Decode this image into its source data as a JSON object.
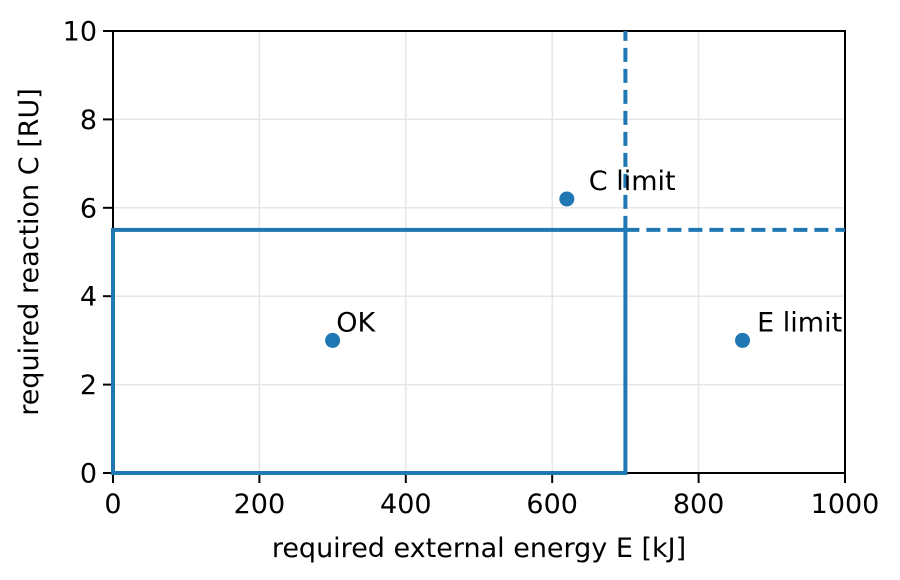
{
  "chart_data": {
    "type": "scatter",
    "title": "",
    "xlabel": "required external energy E [kJ]",
    "ylabel": "required reaction C [RU]",
    "xlim": [
      0,
      1000
    ],
    "ylim": [
      0,
      10
    ],
    "xticks": [
      0,
      200,
      400,
      600,
      800,
      1000
    ],
    "yticks": [
      0,
      2,
      4,
      6,
      8,
      10
    ],
    "grid": true,
    "legend": "none",
    "points": [
      {
        "label": "OK",
        "x": 300,
        "y": 3.0,
        "label_x": 305,
        "label_y": 3.2
      },
      {
        "label": "C limit",
        "x": 620,
        "y": 6.2,
        "label_x": 650,
        "label_y": 6.4
      },
      {
        "label": "E limit",
        "x": 860,
        "y": 3.0,
        "label_x": 880,
        "label_y": 3.2
      }
    ],
    "limits": {
      "E_limit": 700,
      "C_limit": 5.5,
      "solid_region": {
        "x0": 0,
        "y0": 0,
        "x1": 700,
        "y1": 5.5
      },
      "dashed_vertical": {
        "x": 700,
        "y0": 5.5,
        "y1": 10
      },
      "dashed_horizontal": {
        "y": 5.5,
        "x0": 700,
        "x1": 1000
      }
    },
    "colors": {
      "accent": "#1f77b4",
      "grid": "#e6e6e6",
      "axis": "#000000",
      "text": "#000000",
      "background": "#ffffff"
    }
  }
}
